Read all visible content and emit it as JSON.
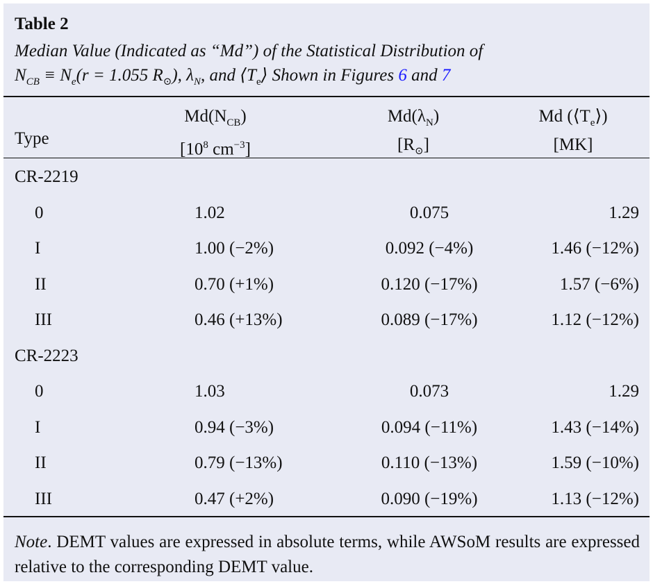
{
  "table": {
    "label": "Table 2",
    "caption_line1": "Median Value (Indicated as “Md”) of the Statistical Distribution of",
    "caption_line2_pre": "≡ N",
    "caption_line2_mid": "(r = 1.055 R",
    "caption_line2_tail": "), λ",
    "caption_line2_end": ", and ⟨T",
    "caption_line2_shown": "⟩ Shown in Figures",
    "figure_6": "6",
    "and_word": "and",
    "figure_7": "7",
    "columns": {
      "type": "Type",
      "ncb_name": "Md(N",
      "ncb_unit": "[10",
      "lambda_name": "Md(λ",
      "lambda_unit": "[R",
      "te_name": "Md (⟨T",
      "te_unit": "[MK]"
    },
    "groups": [
      {
        "name": "CR-2219",
        "rows": [
          {
            "type": "0",
            "ncb": "1.02",
            "lambda": "0.075",
            "te": "1.29"
          },
          {
            "type": "I",
            "ncb": "1.00 (−2%)",
            "lambda": "0.092 (−4%)",
            "te": "1.46 (−12%)"
          },
          {
            "type": "II",
            "ncb": "0.70 (+1%)",
            "lambda": "0.120 (−17%)",
            "te": "1.57 (−6%)"
          },
          {
            "type": "III",
            "ncb": "0.46 (+13%)",
            "lambda": "0.089 (−17%)",
            "te": "1.12 (−12%)"
          }
        ]
      },
      {
        "name": "CR-2223",
        "rows": [
          {
            "type": "0",
            "ncb": "1.03",
            "lambda": "0.073",
            "te": "1.29"
          },
          {
            "type": "I",
            "ncb": "0.94 (−3%)",
            "lambda": "0.094 (−11%)",
            "te": "1.43 (−14%)"
          },
          {
            "type": "II",
            "ncb": "0.79 (−13%)",
            "lambda": "0.110 (−13%)",
            "te": "1.59 (−10%)"
          },
          {
            "type": "III",
            "ncb": "0.47 (+2%)",
            "lambda": "0.090 (−19%)",
            "te": "1.13 (−12%)"
          }
        ]
      }
    ],
    "note_label": "Note",
    "note_text": ". DEMT values are expressed in absolute terms, while AWSoM results are expressed relative to the corresponding DEMT value."
  }
}
